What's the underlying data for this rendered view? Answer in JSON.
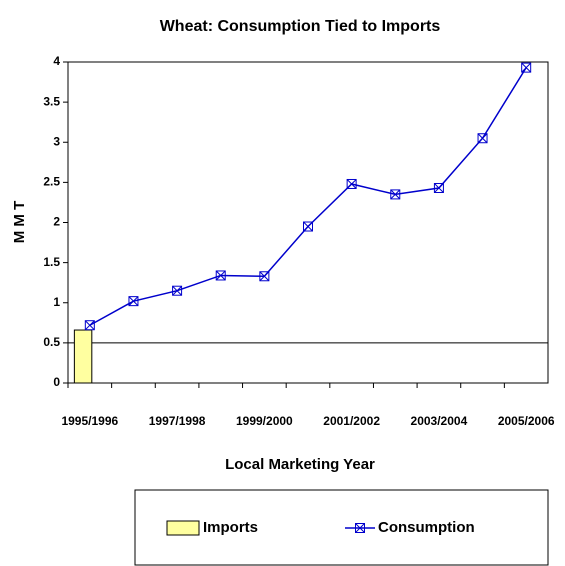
{
  "chart_data": {
    "type": "bar_line",
    "title": "Wheat: Consumption Tied to Imports",
    "x_label": "Local Marketing Year",
    "y_label": "M M T",
    "categories": [
      "1995/1996",
      null,
      "1997/1998",
      null,
      "1999/2000",
      null,
      "2001/2002",
      null,
      "2003/2004",
      null,
      "2005/2006"
    ],
    "series": [
      {
        "name": "Imports",
        "type": "bar",
        "color": "#ffffa0",
        "values": [
          0.66,
          null,
          null,
          null,
          null,
          null,
          null,
          null,
          null,
          null,
          null
        ]
      },
      {
        "name": "Consumption",
        "type": "line",
        "color": "#0000cc",
        "values": [
          0.72,
          1.02,
          1.15,
          1.34,
          1.33,
          1.95,
          2.48,
          2.35,
          2.43,
          3.05,
          3.93
        ]
      }
    ],
    "ylim": [
      0,
      4
    ],
    "yticks": [
      0,
      0.5,
      1,
      1.5,
      2,
      2.5,
      3,
      3.5,
      4
    ],
    "reference_line": 0.5,
    "legend": "bottom"
  }
}
